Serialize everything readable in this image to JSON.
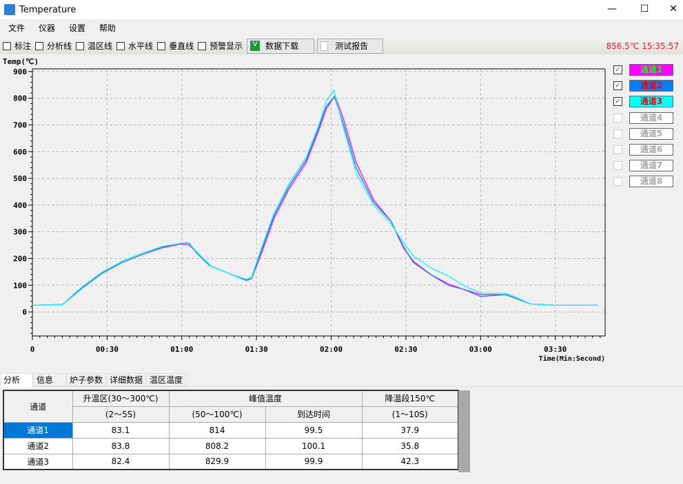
{
  "window": {
    "title": "Temperature",
    "minimize": "—",
    "maximize": "☐",
    "close": "✕"
  },
  "menu": [
    "文件",
    "仪器",
    "设置",
    "帮助"
  ],
  "toolbar": {
    "checkboxes": [
      "标注",
      "分析线",
      "温区线",
      "水平线",
      "垂直线",
      "预警显示"
    ],
    "download": "数据下载",
    "report": "测试报告",
    "status": "856.5℃ 15:35:57"
  },
  "legend": [
    {
      "label": "通道1",
      "checked": true,
      "bg": "#ff00ff",
      "fg": "#00ff00"
    },
    {
      "label": "通道2",
      "checked": true,
      "bg": "#0080ff",
      "fg": "#ff0000"
    },
    {
      "label": "通道3",
      "checked": true,
      "bg": "#00ffff",
      "fg": "#ff0000"
    },
    {
      "label": "通道4",
      "checked": false
    },
    {
      "label": "通道5",
      "checked": false
    },
    {
      "label": "通道6",
      "checked": false
    },
    {
      "label": "通道7",
      "checked": false
    },
    {
      "label": "通道8",
      "checked": false
    }
  ],
  "chart_data": {
    "type": "line",
    "ylabel": "Temp(℃)",
    "xlabel": "Time(Min:Second)",
    "xlim": [
      0,
      230
    ],
    "ylim": [
      -90,
      910
    ],
    "xticks": [
      [
        0,
        "0"
      ],
      [
        30,
        "00:30"
      ],
      [
        60,
        "01:00"
      ],
      [
        90,
        "01:30"
      ],
      [
        120,
        "02:00"
      ],
      [
        150,
        "02:30"
      ],
      [
        180,
        "03:00"
      ],
      [
        210,
        "03:30"
      ]
    ],
    "yticks": [
      0,
      100,
      200,
      300,
      400,
      500,
      600,
      700,
      800,
      900
    ],
    "grid": true,
    "series": [
      {
        "color": "#ff00ff",
        "x": [
          0,
          12,
          20,
          28,
          36,
          44,
          52,
          60,
          63,
          67,
          72,
          80,
          86,
          88,
          92,
          97,
          103,
          110,
          115,
          118,
          121.5,
          125,
          130,
          137,
          144,
          149,
          153,
          160,
          167,
          173,
          180,
          190,
          193,
          200,
          210,
          227
        ],
        "y": [
          25,
          28,
          90,
          145,
          185,
          215,
          240,
          255,
          250,
          215,
          170,
          140,
          120,
          125,
          220,
          350,
          460,
          560,
          680,
          760,
          810,
          720,
          560,
          420,
          340,
          240,
          190,
          140,
          105,
          85,
          65,
          65,
          55,
          30,
          25,
          25
        ]
      },
      {
        "color": "#1e78ff",
        "x": [
          0,
          12,
          20,
          28,
          36,
          44,
          52,
          60,
          63,
          66,
          71,
          80,
          86,
          88,
          92,
          97,
          103,
          110,
          115,
          118,
          121.3,
          125,
          130,
          137,
          144,
          149,
          153,
          160,
          167,
          173,
          180,
          190,
          193,
          200,
          210,
          227
        ],
        "y": [
          25,
          28,
          90,
          145,
          185,
          215,
          242,
          258,
          258,
          220,
          175,
          140,
          118,
          125,
          230,
          360,
          470,
          570,
          690,
          770,
          805,
          700,
          540,
          410,
          340,
          245,
          185,
          140,
          100,
          85,
          58,
          65,
          55,
          30,
          25,
          25
        ]
      },
      {
        "color": "#00ffff",
        "x": [
          0,
          12,
          20,
          28,
          36,
          44,
          52,
          60,
          63,
          67,
          72,
          80,
          86,
          88,
          92,
          97,
          103,
          110,
          115,
          118,
          121,
          124,
          130,
          137,
          144,
          149,
          153,
          160,
          167,
          173,
          180,
          190,
          193,
          200,
          210,
          227
        ],
        "y": [
          25,
          28,
          95,
          150,
          190,
          220,
          245,
          258,
          255,
          215,
          170,
          140,
          122,
          130,
          240,
          370,
          480,
          580,
          700,
          790,
          830,
          720,
          520,
          400,
          330,
          260,
          210,
          165,
          135,
          100,
          70,
          70,
          60,
          30,
          25,
          25
        ]
      }
    ]
  },
  "tabs": [
    "分析",
    "信息",
    "炉子参数",
    "详细数据",
    "温区温度"
  ],
  "table": {
    "headers": {
      "channel": "通道",
      "rise": "升温区(30～300℃)",
      "rise_sub": "(2～5S)",
      "peak": "峰值温度",
      "peak_sub": "(50～100℃)",
      "reach": "到达时间",
      "cool": "降温段150℃",
      "cool_sub": "(1～10S)"
    },
    "rows": [
      [
        "通道1",
        "83.1",
        "814",
        "99.5",
        "37.9"
      ],
      [
        "通道2",
        "83.8",
        "808.2",
        "100.1",
        "35.8"
      ],
      [
        "通道3",
        "82.4",
        "829.9",
        "99.9",
        "42.3"
      ]
    ]
  }
}
